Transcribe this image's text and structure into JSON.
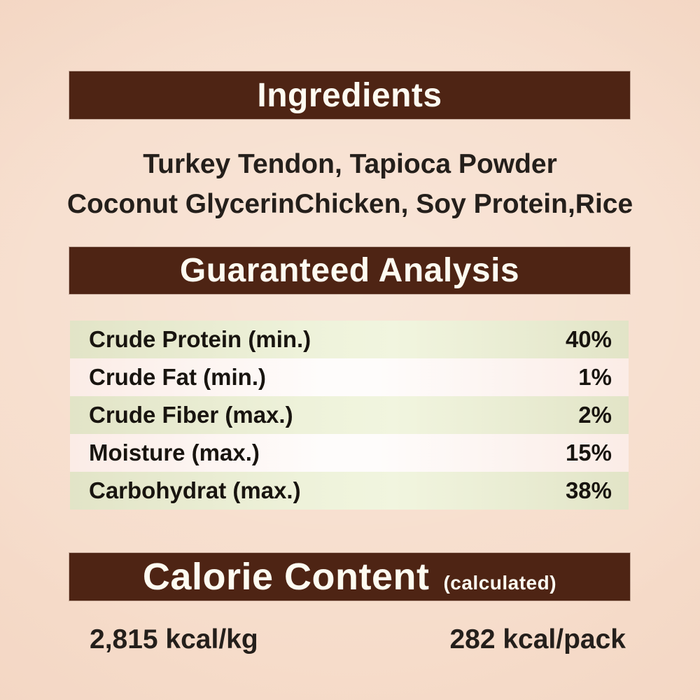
{
  "colors": {
    "background": "#f3d5c3",
    "bar_brown": "#4e2414",
    "bar_text": "#fdfbf1",
    "body_text": "#241f1b",
    "row_green": "#e2e4c7",
    "row_pink": "#fbece6"
  },
  "ingredients": {
    "title": "Ingredients",
    "line1": "Turkey Tendon, Tapioca Powder",
    "line2": "Coconut GlycerinChicken, Soy Protein,Rice"
  },
  "guaranteed_analysis": {
    "title": "Guaranteed Analysis",
    "rows": [
      {
        "label": "Crude Protein (min.)",
        "value": "40%"
      },
      {
        "label": "Crude Fat (min.)",
        "value": "1%"
      },
      {
        "label": "Crude Fiber (max.)",
        "value": "2%"
      },
      {
        "label": "Moisture (max.)",
        "value": "15%"
      },
      {
        "label": "Carbohydrat (max.)",
        "value": "38%"
      }
    ]
  },
  "calorie_content": {
    "title": "Calorie Content",
    "subtitle": "(calculated)",
    "per_kg": "2,815 kcal/kg",
    "per_pack": "282 kcal/pack"
  }
}
